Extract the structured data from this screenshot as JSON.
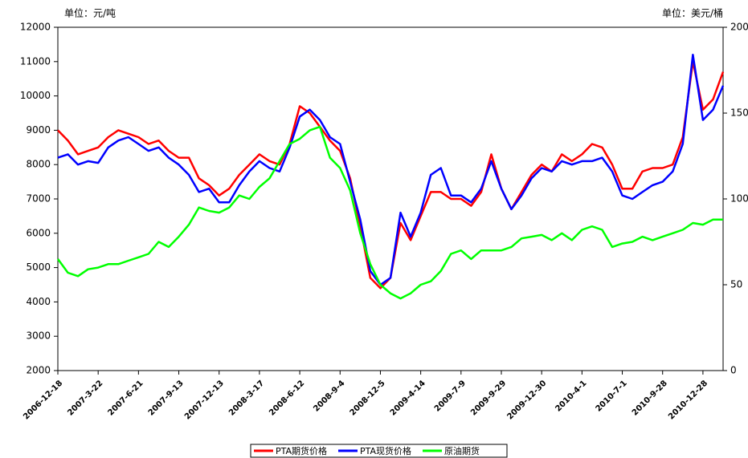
{
  "chart_data": {
    "type": "line",
    "ylabel": "单位：元/吨",
    "y2label": "单位：美元/桶",
    "categories": [
      "2006-12-18",
      null,
      null,
      null,
      "2007-3-22",
      null,
      null,
      null,
      "2007-6-21",
      null,
      null,
      null,
      "2007-9-13",
      null,
      null,
      null,
      "2007-12-13",
      null,
      null,
      null,
      "2008-3-17",
      null,
      null,
      null,
      "2008-6-12",
      null,
      null,
      null,
      "2008-9-4",
      null,
      null,
      null,
      "2008-12-5",
      null,
      null,
      null,
      "2009-4-14",
      null,
      null,
      null,
      "2009-7-9",
      null,
      null,
      null,
      "2009-9-29",
      null,
      null,
      null,
      "2009-12-30",
      null,
      null,
      null,
      "2010-4-1",
      null,
      null,
      null,
      "2010-7-1",
      null,
      null,
      null,
      "2010-9-28",
      null,
      null,
      null,
      "2010-12-28",
      null,
      null
    ],
    "series": [
      {
        "name": "PTA期货价格",
        "color": "#ff0000",
        "values": [
          9000,
          8700,
          8300,
          8400,
          8500,
          8800,
          9000,
          8900,
          8800,
          8600,
          8700,
          8400,
          8200,
          8200,
          7600,
          7400,
          7100,
          7300,
          7700,
          8000,
          8300,
          8100,
          8000,
          8600,
          9700,
          9500,
          9100,
          8700,
          8400,
          7600,
          6200,
          4700,
          4400,
          4700,
          6300,
          5800,
          6500,
          7200,
          7200,
          7000,
          7000,
          6800,
          7200,
          8300,
          7300,
          6700,
          7200,
          7700,
          8000,
          7800,
          8300,
          8100,
          8300,
          8600,
          8500,
          8000,
          7300,
          7300,
          7800,
          7900,
          7900,
          8000,
          8800,
          11000,
          9600,
          9900,
          10700
        ]
      },
      {
        "name": "PTA现货价格",
        "color": "#0000ff",
        "values": [
          8200,
          8300,
          8000,
          8100,
          8050,
          8500,
          8700,
          8800,
          8600,
          8400,
          8500,
          8200,
          8000,
          7700,
          7200,
          7300,
          6900,
          6900,
          7400,
          7800,
          8100,
          7900,
          7800,
          8500,
          9400,
          9600,
          9300,
          8800,
          8600,
          7500,
          6400,
          4900,
          4500,
          4700,
          6600,
          5900,
          6600,
          7700,
          7900,
          7100,
          7100,
          6900,
          7300,
          8100,
          7300,
          6700,
          7100,
          7600,
          7900,
          7800,
          8100,
          8000,
          8100,
          8100,
          8200,
          7800,
          7100,
          7000,
          7200,
          7400,
          7500,
          7800,
          8600,
          11200,
          9300,
          9600,
          10300
        ]
      },
      {
        "name": "原油期货",
        "color": "#00ff00",
        "axis": "y2",
        "values": [
          65,
          57,
          55,
          59,
          60,
          62,
          62,
          64,
          66,
          68,
          75,
          72,
          78,
          85,
          95,
          93,
          92,
          95,
          102,
          100,
          107,
          112,
          122,
          132,
          135,
          140,
          142,
          124,
          118,
          105,
          80,
          62,
          50,
          45,
          42,
          45,
          50,
          52,
          58,
          68,
          70,
          65,
          70,
          70,
          70,
          72,
          77,
          78,
          79,
          76,
          80,
          76,
          82,
          84,
          82,
          72,
          74,
          75,
          78,
          76,
          78,
          80,
          82,
          86,
          85,
          88,
          88
        ]
      }
    ],
    "ylim": [
      2000,
      12000
    ],
    "yticks": [
      2000,
      3000,
      4000,
      5000,
      6000,
      7000,
      8000,
      9000,
      10000,
      11000,
      12000
    ],
    "y2lim": [
      0,
      200
    ],
    "y2ticks": [
      0,
      50,
      100,
      150,
      200
    ],
    "grid": false,
    "legend": "bottom"
  }
}
